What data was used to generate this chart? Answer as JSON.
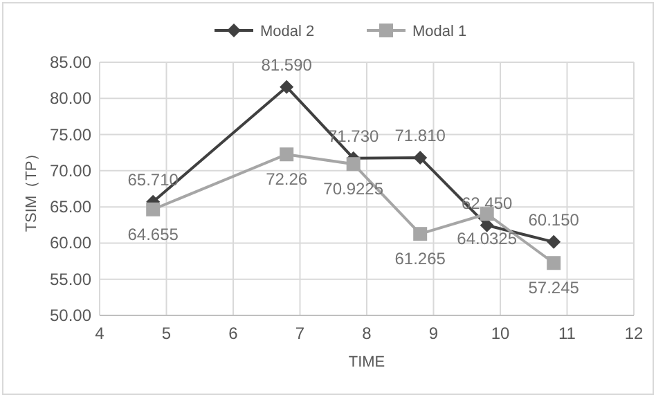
{
  "chart_data": {
    "type": "line",
    "xlabel": "TIME",
    "ylabel": "TSIM（TP）",
    "legend": "top",
    "grid": true,
    "xlim": [
      4,
      12
    ],
    "xticks": [
      4,
      5,
      6,
      7,
      8,
      9,
      10,
      11,
      12
    ],
    "ylim": [
      50,
      85
    ],
    "yticks": [
      {
        "value": 50,
        "label": "50.00"
      },
      {
        "value": 55,
        "label": "55.00"
      },
      {
        "value": 60,
        "label": "60.00"
      },
      {
        "value": 65,
        "label": "65.00"
      },
      {
        "value": 70,
        "label": "70.00"
      },
      {
        "value": 75,
        "label": "75.00"
      },
      {
        "value": 80,
        "label": "80.00"
      },
      {
        "value": 85,
        "label": "85.00"
      }
    ],
    "x": [
      4.8,
      6.8,
      7.8,
      8.8,
      9.8,
      10.8
    ],
    "series": [
      {
        "name": "Modal 2",
        "color": "#404040",
        "marker": "diamond",
        "values": [
          65.71,
          81.59,
          71.73,
          71.81,
          62.45,
          60.15
        ],
        "value_labels": [
          "65.710",
          "81.590",
          "71.730",
          "71.810",
          "62.450",
          "60.150"
        ]
      },
      {
        "name": "Modal 1",
        "color": "#a6a6a6",
        "marker": "square",
        "values": [
          64.655,
          72.26,
          70.9225,
          61.265,
          64.0325,
          57.245
        ],
        "value_labels": [
          "64.655",
          "72.26",
          "70.9225",
          "61.265",
          "64.0325",
          "57.245"
        ]
      }
    ]
  }
}
